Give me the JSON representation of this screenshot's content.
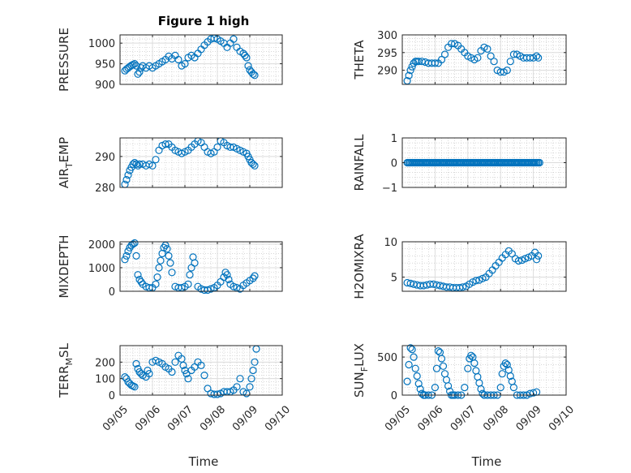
{
  "figure": {
    "title": "Figure 1 high",
    "xlabel": "Time",
    "marker_color": "#0072BD",
    "x_tick_labels": [
      "09/05",
      "09/06",
      "09/07",
      "09/08",
      "09/09",
      "09/10"
    ]
  },
  "chart_data": [
    {
      "type": "scatter",
      "ylabel": "PRESSURE",
      "title": "Figure 1 high",
      "ylim": [
        900,
        1020
      ],
      "yticks": [
        900,
        950,
        1000
      ],
      "grid": true,
      "minor_grid": true,
      "x": [
        5.15,
        5.2,
        5.25,
        5.3,
        5.35,
        5.4,
        5.45,
        5.5,
        5.55,
        5.6,
        5.65,
        5.7,
        5.8,
        5.9,
        6.0,
        6.1,
        6.2,
        6.3,
        6.4,
        6.5,
        6.6,
        6.7,
        6.8,
        6.9,
        7.0,
        7.1,
        7.2,
        7.3,
        7.4,
        7.5,
        7.6,
        7.7,
        7.8,
        7.9,
        8.0,
        8.1,
        8.2,
        8.3,
        8.4,
        8.5,
        8.6,
        8.7,
        8.8,
        8.85,
        8.9,
        8.95,
        9.0,
        9.05,
        9.1,
        9.15
      ],
      "y": [
        933,
        937,
        940,
        943,
        946,
        948,
        950,
        945,
        925,
        930,
        940,
        945,
        940,
        945,
        940,
        945,
        950,
        955,
        960,
        968,
        962,
        970,
        960,
        945,
        950,
        965,
        970,
        965,
        975,
        985,
        995,
        1003,
        1010,
        1012,
        1010,
        1005,
        1000,
        990,
        1000,
        1010,
        990,
        980,
        975,
        970,
        965,
        945,
        935,
        930,
        925,
        922
      ]
    },
    {
      "type": "scatter",
      "ylabel": "THETA",
      "ylim": [
        286,
        300
      ],
      "yticks": [
        290,
        295,
        300
      ],
      "grid": true,
      "minor_grid": true,
      "x": [
        5.15,
        5.2,
        5.25,
        5.3,
        5.35,
        5.4,
        5.45,
        5.5,
        5.6,
        5.7,
        5.8,
        5.9,
        6.0,
        6.1,
        6.2,
        6.3,
        6.4,
        6.5,
        6.6,
        6.7,
        6.8,
        6.9,
        7.0,
        7.1,
        7.2,
        7.3,
        7.4,
        7.5,
        7.6,
        7.7,
        7.8,
        7.9,
        8.0,
        8.1,
        8.2,
        8.3,
        8.4,
        8.5,
        8.6,
        8.7,
        8.8,
        8.9,
        9.0,
        9.1,
        9.15
      ],
      "y": [
        287,
        288.5,
        290,
        291,
        292,
        292.5,
        292.5,
        292.5,
        292.5,
        292.3,
        292,
        292,
        292,
        292,
        293,
        294.5,
        296.5,
        297.5,
        297.5,
        297,
        296,
        295,
        294,
        293.5,
        293,
        293.5,
        295.5,
        296.5,
        296,
        294,
        292.5,
        290,
        289.5,
        289.5,
        290,
        292.5,
        294.5,
        294.5,
        294,
        293.5,
        293.5,
        293.5,
        293.5,
        294,
        293.5
      ]
    },
    {
      "type": "scatter",
      "ylabel": "AIR_TEMP",
      "ylim": [
        280,
        296
      ],
      "yticks": [
        280,
        290
      ],
      "grid": true,
      "minor_grid": true,
      "x": [
        5.15,
        5.2,
        5.25,
        5.3,
        5.35,
        5.4,
        5.45,
        5.5,
        5.55,
        5.6,
        5.7,
        5.8,
        5.9,
        6.0,
        6.1,
        6.2,
        6.3,
        6.4,
        6.5,
        6.6,
        6.7,
        6.8,
        6.9,
        7.0,
        7.1,
        7.2,
        7.3,
        7.4,
        7.5,
        7.6,
        7.7,
        7.8,
        7.9,
        8.0,
        8.1,
        8.2,
        8.3,
        8.4,
        8.5,
        8.6,
        8.7,
        8.8,
        8.9,
        8.95,
        9.0,
        9.05,
        9.1,
        9.15
      ],
      "y": [
        281,
        282.5,
        284,
        285.5,
        286.5,
        287.5,
        288,
        287.5,
        287,
        287.5,
        287.5,
        287,
        287.5,
        287,
        289,
        292,
        293.5,
        294,
        294,
        293,
        292,
        291.5,
        291,
        291.5,
        292,
        293,
        294,
        295,
        294.5,
        293,
        291.5,
        291,
        291.5,
        293,
        295,
        294.5,
        293.5,
        293,
        293,
        292.5,
        292,
        291.5,
        291,
        290,
        289,
        288,
        287.5,
        287
      ]
    },
    {
      "type": "scatter",
      "ylabel": "RAINFALL",
      "ylim": [
        -1,
        1
      ],
      "yticks": [
        -1,
        0,
        1
      ],
      "grid": true,
      "minor_grid": true,
      "x_start": 5.15,
      "x_end": 9.2,
      "x_step": 0.04,
      "constant_value": 0
    },
    {
      "type": "scatter",
      "ylabel": "MIXDEPTH",
      "ylim": [
        0,
        2100
      ],
      "yticks": [
        0,
        1000,
        2000
      ],
      "grid": true,
      "minor_grid": true,
      "x": [
        5.15,
        5.2,
        5.25,
        5.3,
        5.35,
        5.4,
        5.45,
        5.5,
        5.55,
        5.6,
        5.65,
        5.7,
        5.8,
        5.9,
        6.0,
        6.1,
        6.15,
        6.2,
        6.25,
        6.3,
        6.35,
        6.4,
        6.45,
        6.5,
        6.55,
        6.6,
        6.7,
        6.8,
        6.9,
        7.0,
        7.1,
        7.15,
        7.2,
        7.25,
        7.3,
        7.4,
        7.5,
        7.6,
        7.7,
        7.8,
        7.9,
        8.0,
        8.1,
        8.2,
        8.25,
        8.3,
        8.35,
        8.4,
        8.5,
        8.6,
        8.7,
        8.8,
        8.9,
        9.0,
        9.1,
        9.15
      ],
      "y": [
        1350,
        1500,
        1700,
        1850,
        1950,
        2000,
        2050,
        1500,
        700,
        500,
        400,
        300,
        200,
        150,
        150,
        300,
        600,
        1000,
        1300,
        1600,
        1850,
        1950,
        1800,
        1500,
        1200,
        800,
        200,
        150,
        150,
        200,
        300,
        700,
        1000,
        1450,
        1200,
        200,
        100,
        50,
        50,
        100,
        150,
        250,
        400,
        600,
        800,
        700,
        500,
        300,
        200,
        150,
        100,
        250,
        350,
        450,
        550,
        650
      ]
    },
    {
      "type": "scatter",
      "ylabel": "H2OMIXRA",
      "ylim": [
        3,
        10
      ],
      "yticks": [
        5,
        10
      ],
      "grid": true,
      "minor_grid": true,
      "x": [
        5.15,
        5.25,
        5.35,
        5.45,
        5.55,
        5.65,
        5.75,
        5.85,
        5.95,
        6.05,
        6.15,
        6.25,
        6.35,
        6.45,
        6.55,
        6.65,
        6.75,
        6.85,
        6.95,
        7.05,
        7.15,
        7.25,
        7.35,
        7.45,
        7.55,
        7.65,
        7.75,
        7.85,
        7.95,
        8.05,
        8.15,
        8.25,
        8.35,
        8.45,
        8.55,
        8.65,
        8.75,
        8.85,
        8.95,
        9.05,
        9.1,
        9.15
      ],
      "y": [
        4.2,
        4.1,
        4.0,
        3.9,
        3.8,
        3.8,
        3.9,
        4.0,
        4.0,
        3.9,
        3.8,
        3.7,
        3.6,
        3.6,
        3.5,
        3.5,
        3.5,
        3.6,
        3.7,
        4.0,
        4.3,
        4.5,
        4.6,
        4.8,
        5.0,
        5.5,
        6.0,
        6.6,
        7.1,
        7.7,
        8.2,
        8.7,
        8.3,
        7.6,
        7.3,
        7.4,
        7.6,
        7.8,
        8.0,
        8.5,
        7.5,
        8.0
      ]
    },
    {
      "type": "scatter",
      "ylabel": "TERR_MSL",
      "ylim": [
        0,
        300
      ],
      "yticks": [
        0,
        100,
        200
      ],
      "grid": true,
      "minor_grid": true,
      "x": [
        5.15,
        5.2,
        5.25,
        5.3,
        5.35,
        5.4,
        5.45,
        5.5,
        5.55,
        5.6,
        5.65,
        5.7,
        5.8,
        5.85,
        5.9,
        6.0,
        6.1,
        6.2,
        6.3,
        6.4,
        6.5,
        6.6,
        6.7,
        6.8,
        6.9,
        6.95,
        7.0,
        7.05,
        7.1,
        7.2,
        7.3,
        7.4,
        7.5,
        7.6,
        7.7,
        7.8,
        7.9,
        8.0,
        8.1,
        8.2,
        8.3,
        8.4,
        8.5,
        8.6,
        8.7,
        8.8,
        8.9,
        9.0,
        9.05,
        9.1,
        9.15,
        9.2
      ],
      "y": [
        110,
        100,
        80,
        70,
        60,
        55,
        50,
        190,
        160,
        140,
        130,
        120,
        110,
        150,
        130,
        200,
        210,
        200,
        190,
        170,
        160,
        140,
        200,
        240,
        220,
        180,
        150,
        130,
        100,
        150,
        170,
        200,
        180,
        120,
        40,
        10,
        5,
        5,
        10,
        20,
        20,
        20,
        30,
        50,
        100,
        20,
        10,
        50,
        100,
        150,
        200,
        280
      ]
    },
    {
      "type": "scatter",
      "ylabel": "SUN_FLUX",
      "ylim": [
        0,
        650
      ],
      "yticks": [
        0,
        500
      ],
      "grid": true,
      "minor_grid": true,
      "x": [
        5.15,
        5.2,
        5.25,
        5.3,
        5.35,
        5.4,
        5.45,
        5.5,
        5.55,
        5.6,
        5.65,
        5.7,
        5.8,
        5.9,
        6.0,
        6.05,
        6.1,
        6.15,
        6.2,
        6.25,
        6.3,
        6.35,
        6.4,
        6.45,
        6.5,
        6.55,
        6.6,
        6.7,
        6.8,
        6.9,
        7.0,
        7.05,
        7.1,
        7.15,
        7.2,
        7.25,
        7.3,
        7.35,
        7.4,
        7.45,
        7.5,
        7.6,
        7.7,
        7.8,
        7.9,
        8.0,
        8.05,
        8.1,
        8.15,
        8.2,
        8.25,
        8.3,
        8.35,
        8.4,
        8.5,
        8.6,
        8.7,
        8.8,
        8.9,
        9.0,
        9.1
      ],
      "y": [
        180,
        400,
        620,
        600,
        500,
        350,
        250,
        150,
        80,
        20,
        0,
        0,
        0,
        0,
        100,
        350,
        580,
        560,
        480,
        380,
        280,
        200,
        120,
        50,
        0,
        0,
        0,
        0,
        0,
        100,
        350,
        480,
        520,
        500,
        420,
        320,
        240,
        160,
        80,
        20,
        0,
        0,
        0,
        0,
        0,
        100,
        280,
        380,
        420,
        400,
        330,
        250,
        180,
        100,
        0,
        0,
        0,
        0,
        20,
        30,
        40
      ]
    }
  ]
}
